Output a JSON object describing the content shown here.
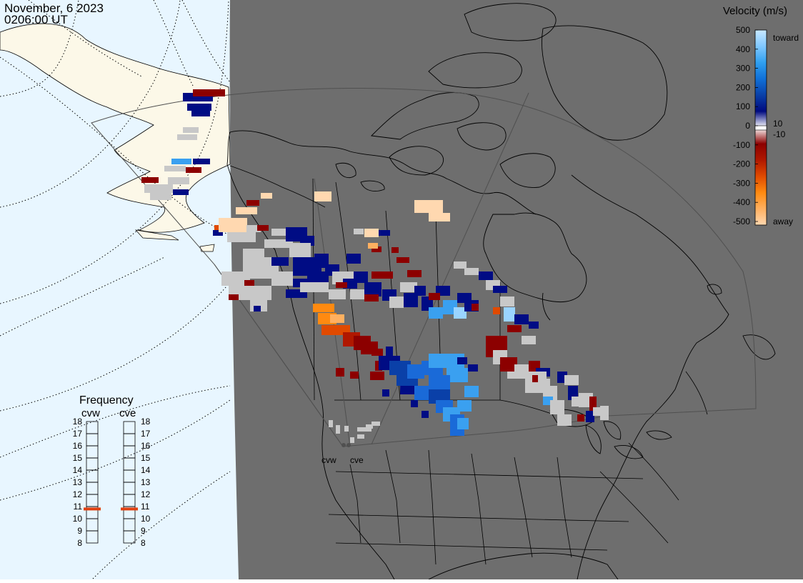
{
  "header": {
    "date": "November, 6 2023",
    "time": "0206:00 UT"
  },
  "colors": {
    "night_shade": "#6e6e6e",
    "day_ocean": "#e8f6ff",
    "day_land": "#fcf8e8",
    "ground_scatter": "#c8c8c8"
  },
  "colorbar": {
    "title": "Velocity (m/s)",
    "ticks": [
      "500",
      "400",
      "300",
      "200",
      "100",
      "0",
      "-100",
      "-200",
      "-300",
      "-400",
      "-500"
    ],
    "inner_labels": [
      "10",
      "-10"
    ],
    "toward_label": "toward",
    "away_label": "away",
    "stops": [
      "#c8e8ff",
      "#80c8ff",
      "#30a0f0",
      "#1070d8",
      "#0a40a8",
      "#000a80",
      "#ffffff",
      "#8c0000",
      "#b01800",
      "#e04a00",
      "#ff8a10",
      "#ffb060",
      "#ffd8b0"
    ]
  },
  "frequency": {
    "title": "Frequency",
    "radars": [
      {
        "code": "cvw",
        "value_mhz": 10.8
      },
      {
        "code": "cve",
        "value_mhz": 10.8
      }
    ],
    "ticks": [
      "18",
      "17",
      "16",
      "15",
      "14",
      "13",
      "12",
      "11",
      "10",
      "9",
      "8"
    ],
    "min": 8,
    "max": 18,
    "marker_color": "#e04010"
  },
  "radar_labels": [
    "cvw",
    "cve"
  ],
  "legend_words": [
    "toward",
    "away"
  ]
}
